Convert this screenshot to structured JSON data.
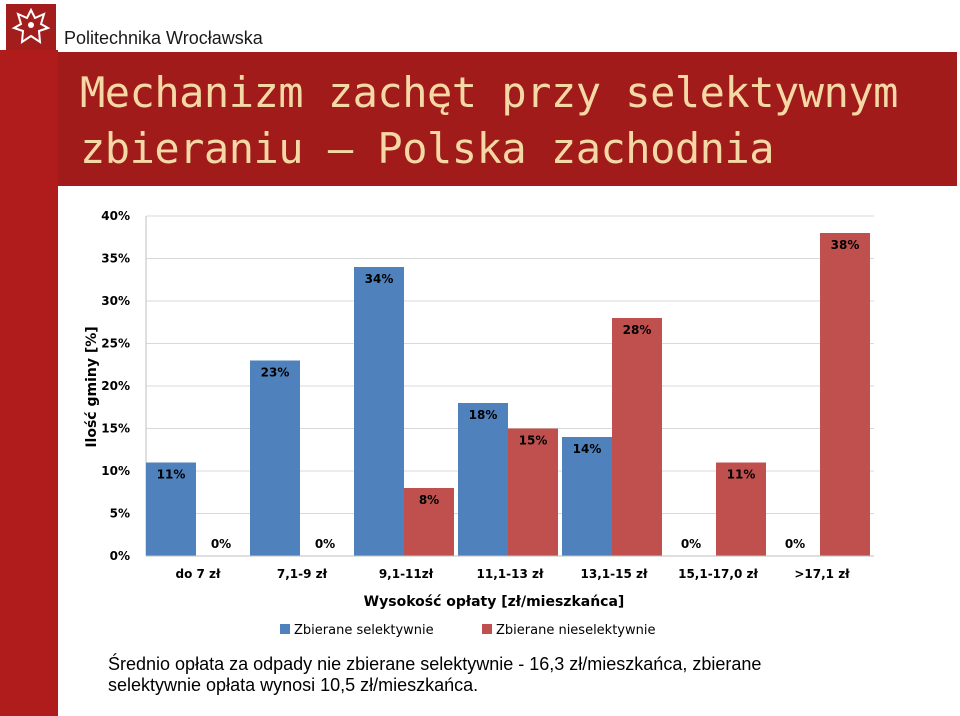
{
  "header": {
    "org_name": "Politechnika Wrocławska",
    "logo_icon": "eagle-crest-icon"
  },
  "slide": {
    "title_line1": "Mechanizm zachęt przy selektywnym",
    "title_line2": "zbieraniu – Polska zachodnia",
    "footnote_line1": "Średnio opłata za odpady nie zbierane selektywnie - 16,3 zł/mieszkańca,  zbierane",
    "footnote_line2": "selektywnie opłata wynosi 10,5 zł/mieszkańca."
  },
  "colors": {
    "brand_red": "#a11b1b",
    "title_text": "#f4d9a6",
    "series_selective": "#4f81bd",
    "series_nonselective": "#c0504d"
  },
  "chart_data": {
    "type": "bar",
    "categories": [
      "do 7 zł",
      "7,1-9 zł",
      "9,1-11zł",
      "11,1-13 zł",
      "13,1-15 zł",
      "15,1-17,0 zł",
      ">17,1 zł"
    ],
    "series": [
      {
        "name": "Zbierane selektywnie",
        "values": [
          11,
          23,
          34,
          18,
          14,
          0,
          0
        ],
        "labels": [
          "11%",
          "23%",
          "34%",
          "18%",
          "14%",
          "0%",
          "0%"
        ],
        "color": "#4f81bd"
      },
      {
        "name": "Zbierane nieselektywnie",
        "values": [
          0,
          0,
          8,
          15,
          28,
          11,
          38
        ],
        "labels": [
          "0%",
          "0%",
          "8%",
          "15%",
          "28%",
          "11%",
          "38%"
        ],
        "color": "#c0504d"
      }
    ],
    "ylim": [
      0,
      40
    ],
    "yticks": [
      "0%",
      "5%",
      "10%",
      "15%",
      "20%",
      "25%",
      "30%",
      "35%",
      "40%"
    ],
    "xlabel": "Wysokość opłaty [zł/mieszkańca]",
    "ylabel": "Ilość gminy [%]",
    "grid": true,
    "legend_position": "bottom"
  }
}
